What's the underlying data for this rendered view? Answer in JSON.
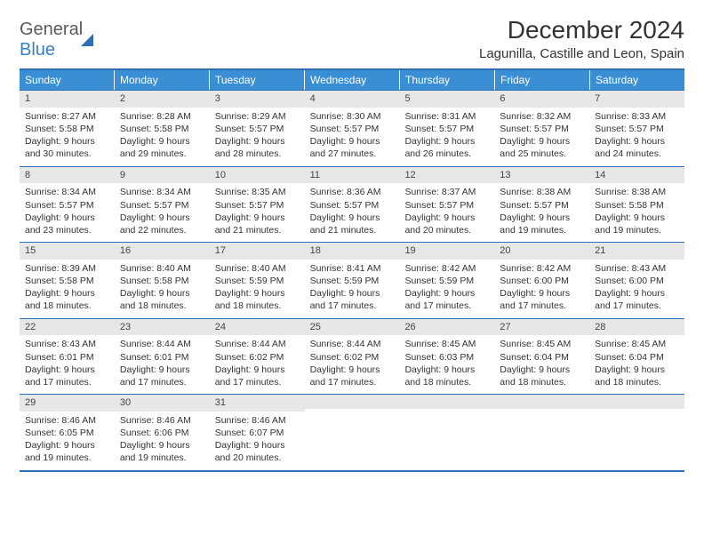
{
  "logo": {
    "part1": "General",
    "part2": "Blue"
  },
  "title": "December 2024",
  "location": "Lagunilla, Castille and Leon, Spain",
  "colors": {
    "header_bg": "#3a8fd4",
    "border": "#2c6fb5",
    "daynum_bg": "#e7e7e7",
    "logo_gray": "#5a5a5a",
    "logo_blue": "#3a7fc4"
  },
  "weekdays": [
    "Sunday",
    "Monday",
    "Tuesday",
    "Wednesday",
    "Thursday",
    "Friday",
    "Saturday"
  ],
  "weeks": [
    [
      {
        "n": "1",
        "sunrise": "8:27 AM",
        "sunset": "5:58 PM",
        "dl1": "Daylight: 9 hours",
        "dl2": "and 30 minutes."
      },
      {
        "n": "2",
        "sunrise": "8:28 AM",
        "sunset": "5:58 PM",
        "dl1": "Daylight: 9 hours",
        "dl2": "and 29 minutes."
      },
      {
        "n": "3",
        "sunrise": "8:29 AM",
        "sunset": "5:57 PM",
        "dl1": "Daylight: 9 hours",
        "dl2": "and 28 minutes."
      },
      {
        "n": "4",
        "sunrise": "8:30 AM",
        "sunset": "5:57 PM",
        "dl1": "Daylight: 9 hours",
        "dl2": "and 27 minutes."
      },
      {
        "n": "5",
        "sunrise": "8:31 AM",
        "sunset": "5:57 PM",
        "dl1": "Daylight: 9 hours",
        "dl2": "and 26 minutes."
      },
      {
        "n": "6",
        "sunrise": "8:32 AM",
        "sunset": "5:57 PM",
        "dl1": "Daylight: 9 hours",
        "dl2": "and 25 minutes."
      },
      {
        "n": "7",
        "sunrise": "8:33 AM",
        "sunset": "5:57 PM",
        "dl1": "Daylight: 9 hours",
        "dl2": "and 24 minutes."
      }
    ],
    [
      {
        "n": "8",
        "sunrise": "8:34 AM",
        "sunset": "5:57 PM",
        "dl1": "Daylight: 9 hours",
        "dl2": "and 23 minutes."
      },
      {
        "n": "9",
        "sunrise": "8:34 AM",
        "sunset": "5:57 PM",
        "dl1": "Daylight: 9 hours",
        "dl2": "and 22 minutes."
      },
      {
        "n": "10",
        "sunrise": "8:35 AM",
        "sunset": "5:57 PM",
        "dl1": "Daylight: 9 hours",
        "dl2": "and 21 minutes."
      },
      {
        "n": "11",
        "sunrise": "8:36 AM",
        "sunset": "5:57 PM",
        "dl1": "Daylight: 9 hours",
        "dl2": "and 21 minutes."
      },
      {
        "n": "12",
        "sunrise": "8:37 AM",
        "sunset": "5:57 PM",
        "dl1": "Daylight: 9 hours",
        "dl2": "and 20 minutes."
      },
      {
        "n": "13",
        "sunrise": "8:38 AM",
        "sunset": "5:57 PM",
        "dl1": "Daylight: 9 hours",
        "dl2": "and 19 minutes."
      },
      {
        "n": "14",
        "sunrise": "8:38 AM",
        "sunset": "5:58 PM",
        "dl1": "Daylight: 9 hours",
        "dl2": "and 19 minutes."
      }
    ],
    [
      {
        "n": "15",
        "sunrise": "8:39 AM",
        "sunset": "5:58 PM",
        "dl1": "Daylight: 9 hours",
        "dl2": "and 18 minutes."
      },
      {
        "n": "16",
        "sunrise": "8:40 AM",
        "sunset": "5:58 PM",
        "dl1": "Daylight: 9 hours",
        "dl2": "and 18 minutes."
      },
      {
        "n": "17",
        "sunrise": "8:40 AM",
        "sunset": "5:59 PM",
        "dl1": "Daylight: 9 hours",
        "dl2": "and 18 minutes."
      },
      {
        "n": "18",
        "sunrise": "8:41 AM",
        "sunset": "5:59 PM",
        "dl1": "Daylight: 9 hours",
        "dl2": "and 17 minutes."
      },
      {
        "n": "19",
        "sunrise": "8:42 AM",
        "sunset": "5:59 PM",
        "dl1": "Daylight: 9 hours",
        "dl2": "and 17 minutes."
      },
      {
        "n": "20",
        "sunrise": "8:42 AM",
        "sunset": "6:00 PM",
        "dl1": "Daylight: 9 hours",
        "dl2": "and 17 minutes."
      },
      {
        "n": "21",
        "sunrise": "8:43 AM",
        "sunset": "6:00 PM",
        "dl1": "Daylight: 9 hours",
        "dl2": "and 17 minutes."
      }
    ],
    [
      {
        "n": "22",
        "sunrise": "8:43 AM",
        "sunset": "6:01 PM",
        "dl1": "Daylight: 9 hours",
        "dl2": "and 17 minutes."
      },
      {
        "n": "23",
        "sunrise": "8:44 AM",
        "sunset": "6:01 PM",
        "dl1": "Daylight: 9 hours",
        "dl2": "and 17 minutes."
      },
      {
        "n": "24",
        "sunrise": "8:44 AM",
        "sunset": "6:02 PM",
        "dl1": "Daylight: 9 hours",
        "dl2": "and 17 minutes."
      },
      {
        "n": "25",
        "sunrise": "8:44 AM",
        "sunset": "6:02 PM",
        "dl1": "Daylight: 9 hours",
        "dl2": "and 17 minutes."
      },
      {
        "n": "26",
        "sunrise": "8:45 AM",
        "sunset": "6:03 PM",
        "dl1": "Daylight: 9 hours",
        "dl2": "and 18 minutes."
      },
      {
        "n": "27",
        "sunrise": "8:45 AM",
        "sunset": "6:04 PM",
        "dl1": "Daylight: 9 hours",
        "dl2": "and 18 minutes."
      },
      {
        "n": "28",
        "sunrise": "8:45 AM",
        "sunset": "6:04 PM",
        "dl1": "Daylight: 9 hours",
        "dl2": "and 18 minutes."
      }
    ],
    [
      {
        "n": "29",
        "sunrise": "8:46 AM",
        "sunset": "6:05 PM",
        "dl1": "Daylight: 9 hours",
        "dl2": "and 19 minutes."
      },
      {
        "n": "30",
        "sunrise": "8:46 AM",
        "sunset": "6:06 PM",
        "dl1": "Daylight: 9 hours",
        "dl2": "and 19 minutes."
      },
      {
        "n": "31",
        "sunrise": "8:46 AM",
        "sunset": "6:07 PM",
        "dl1": "Daylight: 9 hours",
        "dl2": "and 20 minutes."
      },
      {
        "empty": true
      },
      {
        "empty": true
      },
      {
        "empty": true
      },
      {
        "empty": true
      }
    ]
  ],
  "labels": {
    "sunrise": "Sunrise:",
    "sunset": "Sunset:"
  }
}
